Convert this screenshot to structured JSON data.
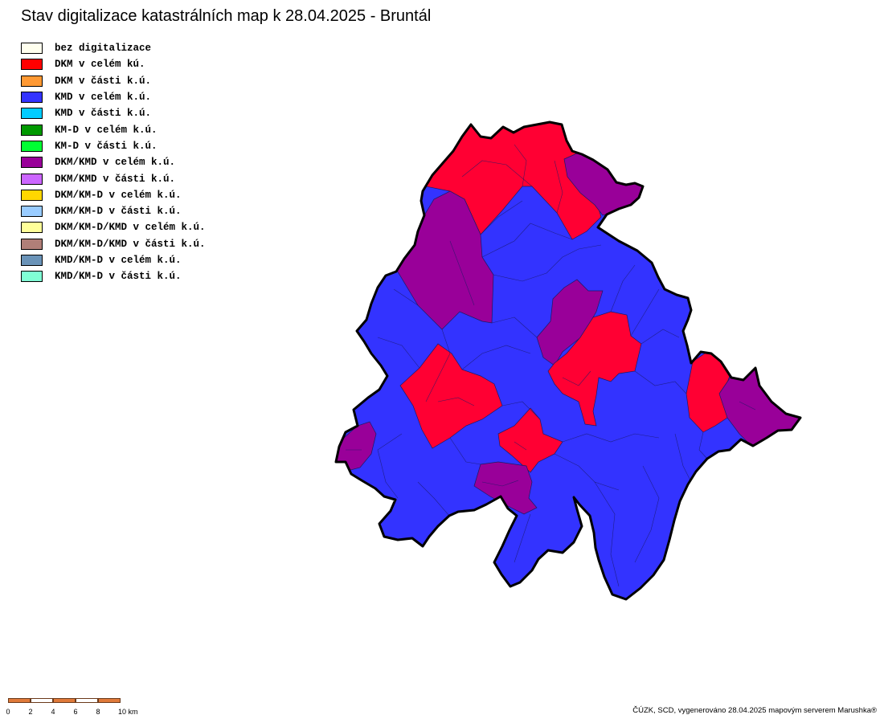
{
  "map": {
    "title": "Stav digitalizace katastrálních map k 28.04.2025 - Bruntál",
    "credits": "ČÚZK, SCD, vygenerováno 28.04.2025 mapovým serverem Marushka®"
  },
  "legend": {
    "items": [
      {
        "label": "bez digitalizace",
        "color": "#ffffee"
      },
      {
        "label": "DKM v celém kú.",
        "color": "#ff0000"
      },
      {
        "label": "DKM v části k.ú.",
        "color": "#ff9933"
      },
      {
        "label": "KMD v celém k.ú.",
        "color": "#3333ff"
      },
      {
        "label": "KMD v části k.ú.",
        "color": "#00ccff"
      },
      {
        "label": "KM-D v celém k.ú.",
        "color": "#009900"
      },
      {
        "label": "KM-D v části k.ú.",
        "color": "#00ff33"
      },
      {
        "label": "DKM/KMD v celém k.ú.",
        "color": "#990099"
      },
      {
        "label": "DKM/KMD v části k.ú.",
        "color": "#cc66ff"
      },
      {
        "label": "DKM/KM-D v celém k.ú.",
        "color": "#ffd700"
      },
      {
        "label": "DKM/KM-D v části k.ú.",
        "color": "#99ccff"
      },
      {
        "label": "DKM/KM-D/KMD v celém k.ú.",
        "color": "#ffff99"
      },
      {
        "label": "DKM/KM-D/KMD v části k.ú.",
        "color": "#b07f78"
      },
      {
        "label": "KMD/KM-D v celém k.ú.",
        "color": "#6a93b8"
      },
      {
        "label": "KMD/KM-D v části k.ú.",
        "color": "#80ffd5"
      }
    ]
  },
  "map_colors": {
    "dkm_full": "#ff0033",
    "kmd_full": "#3333ff",
    "dkm_kmd_full": "#990099",
    "district_border": "#000000",
    "parcel_border": "#1a1a66"
  },
  "scale": {
    "ticks": [
      "0",
      "2",
      "4",
      "6",
      "8",
      "10 km"
    ],
    "color_dark": "#e07a3a",
    "color_light": "#ffffff"
  }
}
